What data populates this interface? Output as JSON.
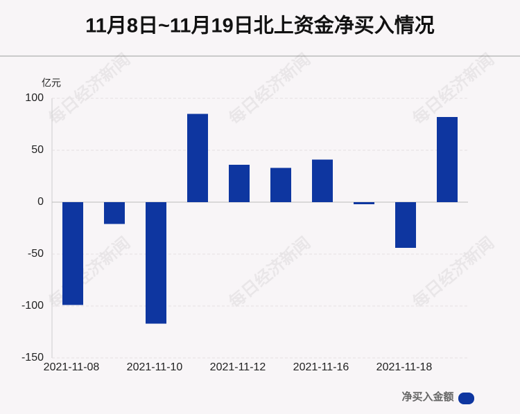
{
  "chart_data": {
    "type": "bar",
    "title": "11月8日~11月19日北上资金净买入情况",
    "y_unit": "亿元",
    "categories": [
      "2021-11-08",
      null,
      "2021-11-10",
      null,
      "2021-11-12",
      null,
      "2021-11-16",
      null,
      "2021-11-18",
      null
    ],
    "series": [
      {
        "name": "净买入金额",
        "color": "#0e36a0",
        "values": [
          -99,
          -21,
          -117,
          85,
          36,
          33,
          41,
          -2,
          -44,
          82
        ]
      }
    ],
    "ylim": [
      -150,
      100
    ],
    "yticks": [
      -150,
      -100,
      -50,
      0,
      50,
      100
    ],
    "grid": true,
    "watermark": "每日经济新闻"
  }
}
